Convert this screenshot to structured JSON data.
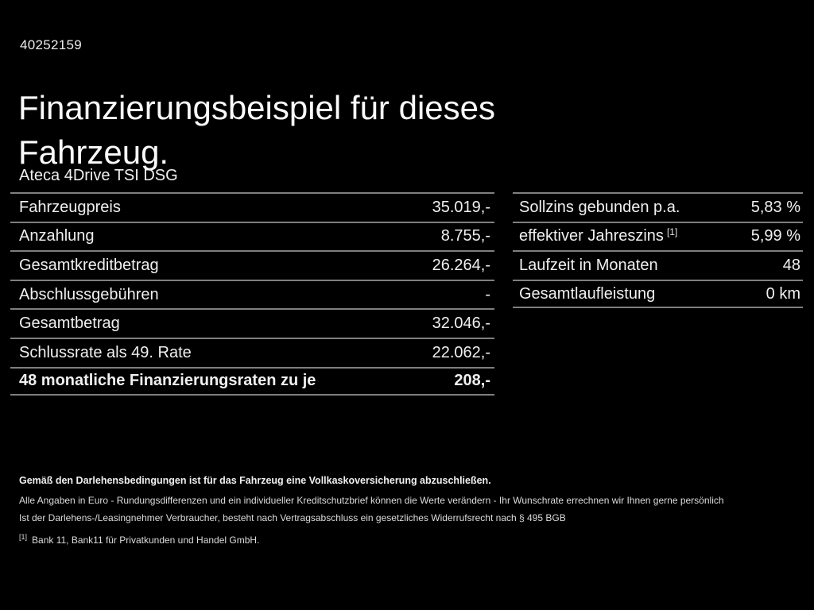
{
  "page": {
    "background": "#000000",
    "text_color": "#f2f2f2",
    "divider_color": "#7f7f7f"
  },
  "header": {
    "vehicle_id": "40252159",
    "title": "Finanzierungsbeispiel für dieses Fahrzeug.",
    "model": "Ateca 4Drive TSI DSG"
  },
  "finance_table": {
    "rows": [
      {
        "label": "Fahrzeugpreis",
        "value": "35.019,-"
      },
      {
        "label": "Anzahlung",
        "value": "8.755,-"
      },
      {
        "label": "Gesamtkreditbetrag",
        "value": "26.264,-"
      },
      {
        "label": "Abschlussgebühren",
        "value": "-"
      },
      {
        "label": "Gesamtbetrag",
        "value": "32.046,-"
      },
      {
        "label": "Schlussrate als 49. Rate",
        "value": "22.062,-"
      },
      {
        "label": "48 monatliche Finanzierungsraten zu je",
        "value": "208,-"
      }
    ]
  },
  "terms_table": {
    "rows": [
      {
        "label": "Sollzins gebunden p.a.",
        "sup": "",
        "value": "5,83 %"
      },
      {
        "label": "effektiver Jahreszins",
        "sup": "[1]",
        "value": "5,99 %"
      },
      {
        "label": "Laufzeit in Monaten",
        "sup": "",
        "value": "48"
      },
      {
        "label": "Gesamtlaufleistung",
        "sup": "",
        "value": "0 km"
      }
    ]
  },
  "footer": {
    "bold_note": "Gemäß den Darlehensbedingungen ist für das Fahrzeug eine Vollkaskoversicherung abzuschließen.",
    "note_line1": "Alle Angaben in Euro - Rundungsdifferenzen und ein individueller Kreditschutzbrief können die Werte verändern - Ihr Wunschrate errechnen wir Ihnen gerne persönlich",
    "note_line2": "Ist der Darlehens-/Leasingnehmer Verbraucher, besteht nach Vertragsabschluss ein gesetzliches Widerrufsrecht nach § 495 BGB",
    "footnote_marker": "[1]",
    "footnote_text": "Bank 11, Bank11 für Privatkunden und Handel GmbH."
  }
}
